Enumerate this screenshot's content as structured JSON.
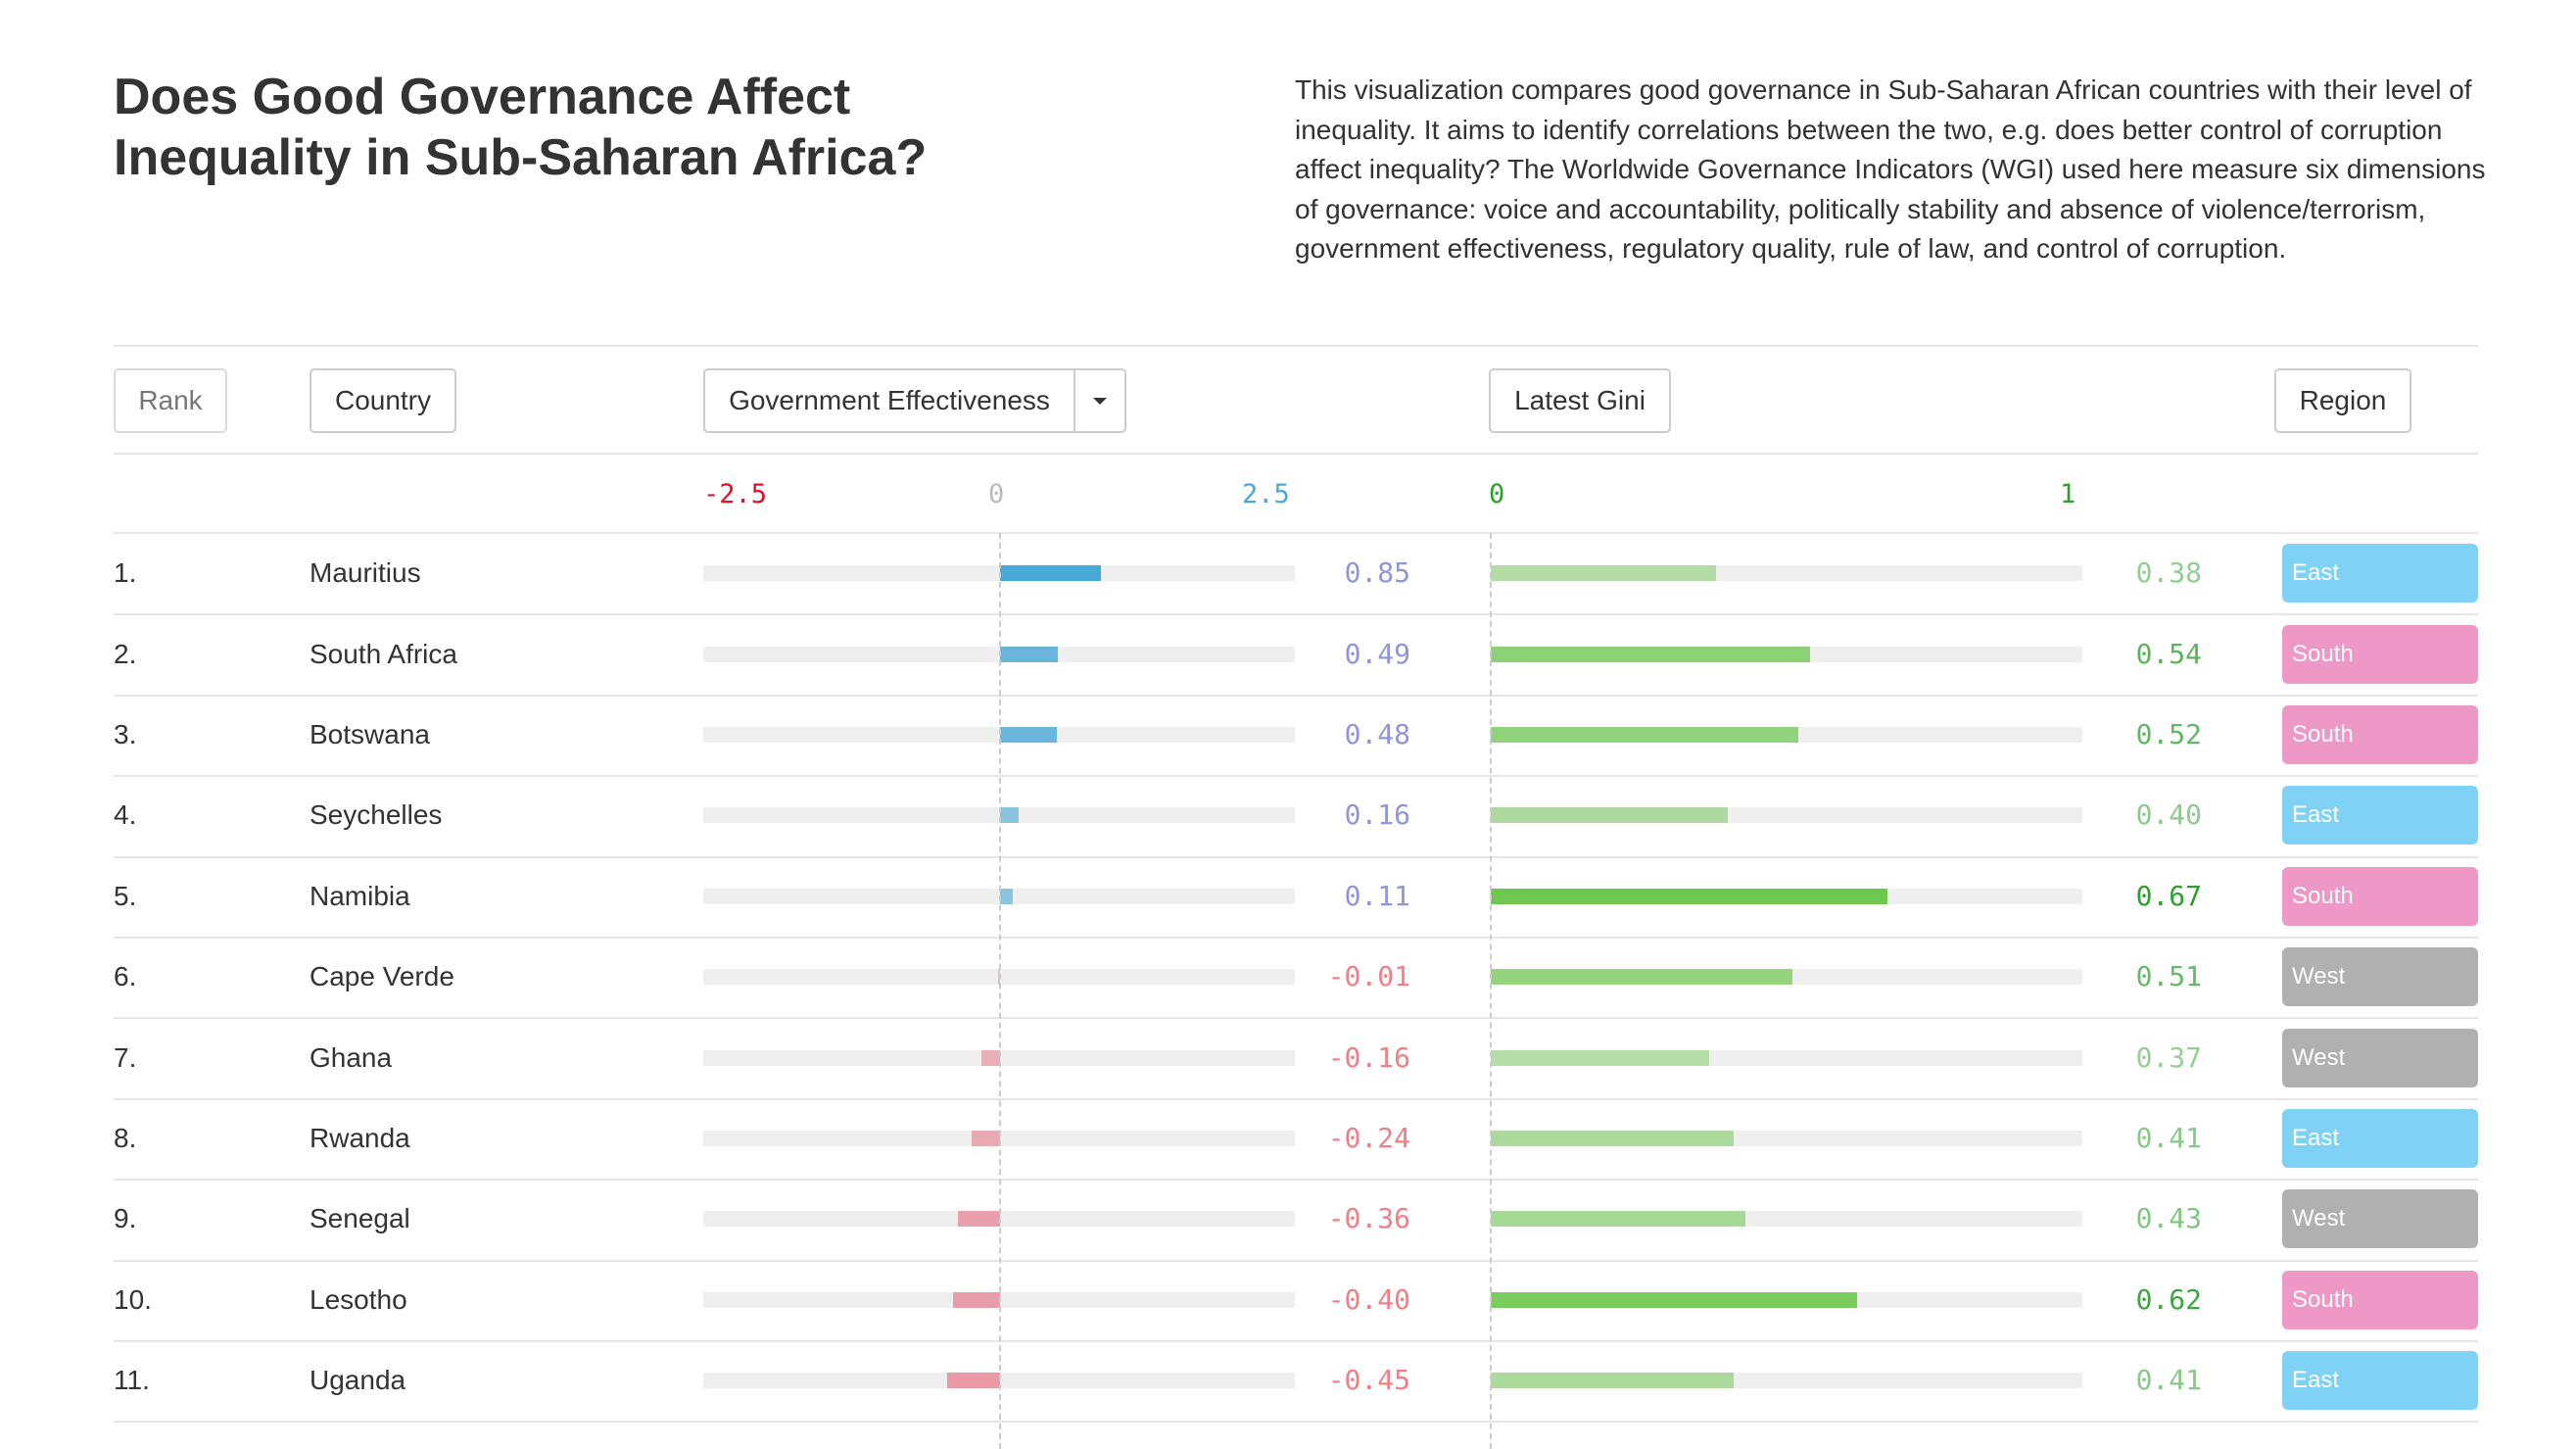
{
  "header": {
    "title": "Does Good Governance Affect Inequality in Sub-Saharan Africa?",
    "intro": "This visualization compares good governance in Sub-Saharan African countries with their level of inequality. It aims to identify correlations between the two, e.g. does better control of corruption affect inequality? The Worldwide Governance Indicators (WGI) used here measure six dimensions of governance: voice and accountability, politically stability and absence of violence/terrorism, government effectiveness, regulatory quality, rule of law, and control of corruption."
  },
  "columns": {
    "rank": "Rank",
    "country": "Country",
    "indicator": "Government Effectiveness",
    "gini": "Latest Gini",
    "region": "Region"
  },
  "scales": {
    "indicator_min_label": "-2.5",
    "indicator_zero_label": "0",
    "indicator_max_label": "2.5",
    "indicator_min": -2.5,
    "indicator_max": 2.5,
    "gini_min_label": "0",
    "gini_max_label": "1",
    "gini_min": 0,
    "gini_max": 1
  },
  "colors": {
    "positive_scale": "#4aa8d8",
    "negative_scale": "#e0102a",
    "zero_label": "#bbbbbb",
    "gini_label": "#2ca02c",
    "East": "#7fd1f5",
    "South": "#ee98c8",
    "West": "#b0b0b0"
  },
  "rows": [
    {
      "rank": "1.",
      "country": "Mauritius",
      "value": 0.85,
      "value_text": "0.85",
      "gini": 0.38,
      "gini_text": "0.38",
      "region": "East"
    },
    {
      "rank": "2.",
      "country": "South Africa",
      "value": 0.49,
      "value_text": "0.49",
      "gini": 0.54,
      "gini_text": "0.54",
      "region": "South"
    },
    {
      "rank": "3.",
      "country": "Botswana",
      "value": 0.48,
      "value_text": "0.48",
      "gini": 0.52,
      "gini_text": "0.52",
      "region": "South"
    },
    {
      "rank": "4.",
      "country": "Seychelles",
      "value": 0.16,
      "value_text": "0.16",
      "gini": 0.4,
      "gini_text": "0.40",
      "region": "East"
    },
    {
      "rank": "5.",
      "country": "Namibia",
      "value": 0.11,
      "value_text": "0.11",
      "gini": 0.67,
      "gini_text": "0.67",
      "region": "South"
    },
    {
      "rank": "6.",
      "country": "Cape Verde",
      "value": -0.01,
      "value_text": "-0.01",
      "gini": 0.51,
      "gini_text": "0.51",
      "region": "West"
    },
    {
      "rank": "7.",
      "country": "Ghana",
      "value": -0.16,
      "value_text": "-0.16",
      "gini": 0.37,
      "gini_text": "0.37",
      "region": "West"
    },
    {
      "rank": "8.",
      "country": "Rwanda",
      "value": -0.24,
      "value_text": "-0.24",
      "gini": 0.41,
      "gini_text": "0.41",
      "region": "East"
    },
    {
      "rank": "9.",
      "country": "Senegal",
      "value": -0.36,
      "value_text": "-0.36",
      "gini": 0.43,
      "gini_text": "0.43",
      "region": "West"
    },
    {
      "rank": "10.",
      "country": "Lesotho",
      "value": -0.4,
      "value_text": "-0.40",
      "gini": 0.62,
      "gini_text": "0.62",
      "region": "South"
    },
    {
      "rank": "11.",
      "country": "Uganda",
      "value": -0.45,
      "value_text": "-0.45",
      "gini": 0.41,
      "gini_text": "0.41",
      "region": "East"
    }
  ]
}
